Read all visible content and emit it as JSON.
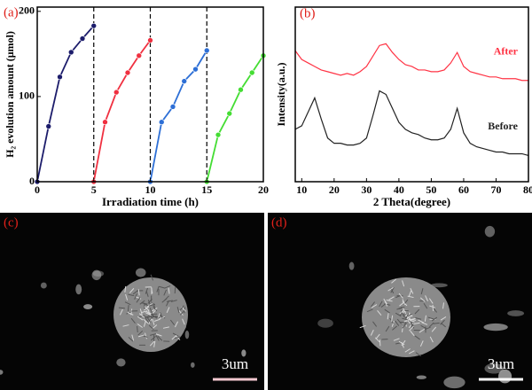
{
  "chart_data": [
    {
      "type": "line",
      "panel_label": "(a)",
      "xlabel": "Irradiation time (h)",
      "ylabel": "H₂ evolution amount (μmol)",
      "xlim": [
        0,
        20
      ],
      "xticks": [
        0,
        5,
        10,
        15,
        20
      ],
      "ylim": [
        0,
        205
      ],
      "yticks": [
        0,
        100,
        200
      ],
      "vlines": [
        5,
        10,
        15
      ],
      "markers": true,
      "series": [
        {
          "color": "#1c1c6b",
          "x": [
            0,
            1,
            2,
            3,
            4,
            5
          ],
          "values": [
            0,
            65,
            123,
            152,
            168,
            183
          ]
        },
        {
          "color": "#f03040",
          "x": [
            5,
            6,
            7,
            8,
            9,
            10
          ],
          "values": [
            0,
            70,
            105,
            128,
            148,
            166
          ]
        },
        {
          "color": "#2d6fd6",
          "x": [
            10,
            11,
            12,
            13,
            14,
            15
          ],
          "values": [
            0,
            70,
            88,
            118,
            132,
            154
          ]
        },
        {
          "color": "#44dd33",
          "x": [
            15,
            16,
            17,
            18,
            19,
            20
          ],
          "values": [
            0,
            55,
            80,
            108,
            128,
            148
          ]
        }
      ]
    },
    {
      "type": "line",
      "panel_label": "(b)",
      "xlabel": "2 Theta(degree)",
      "ylabel": "Intensity(a.u.)",
      "xlim": [
        8,
        80
      ],
      "xticks": [
        10,
        20,
        30,
        40,
        50,
        60,
        70,
        80
      ],
      "ylim": [
        0,
        100
      ],
      "markers": false,
      "x": [
        8,
        10,
        12,
        14,
        16,
        18,
        20,
        22,
        24,
        26,
        28,
        30,
        32,
        34,
        36,
        38,
        40,
        42,
        44,
        46,
        48,
        50,
        52,
        54,
        56,
        58,
        60,
        62,
        64,
        66,
        68,
        70,
        72,
        74,
        76,
        78,
        80
      ],
      "series": [
        {
          "name": "After",
          "color": "#ff3344",
          "values": [
            75,
            70,
            68,
            66,
            64,
            63,
            62,
            61,
            62,
            61,
            63,
            66,
            72,
            78,
            79,
            74,
            70,
            67,
            66,
            64,
            64,
            63,
            63,
            64,
            68,
            74,
            66,
            63,
            62,
            61,
            60,
            60,
            59,
            59,
            59,
            58,
            58
          ]
        },
        {
          "name": "Before",
          "color": "#222222",
          "values": [
            30,
            32,
            40,
            48,
            36,
            25,
            22,
            22,
            21,
            21,
            22,
            25,
            38,
            52,
            50,
            42,
            34,
            30,
            28,
            27,
            25,
            24,
            24,
            25,
            30,
            42,
            28,
            22,
            20,
            19,
            18,
            17,
            17,
            16,
            16,
            16,
            15
          ]
        }
      ]
    }
  ],
  "images": [
    {
      "label": "(c)",
      "scale_bar": "3um"
    },
    {
      "label": "(d)",
      "scale_bar": "3um"
    }
  ]
}
